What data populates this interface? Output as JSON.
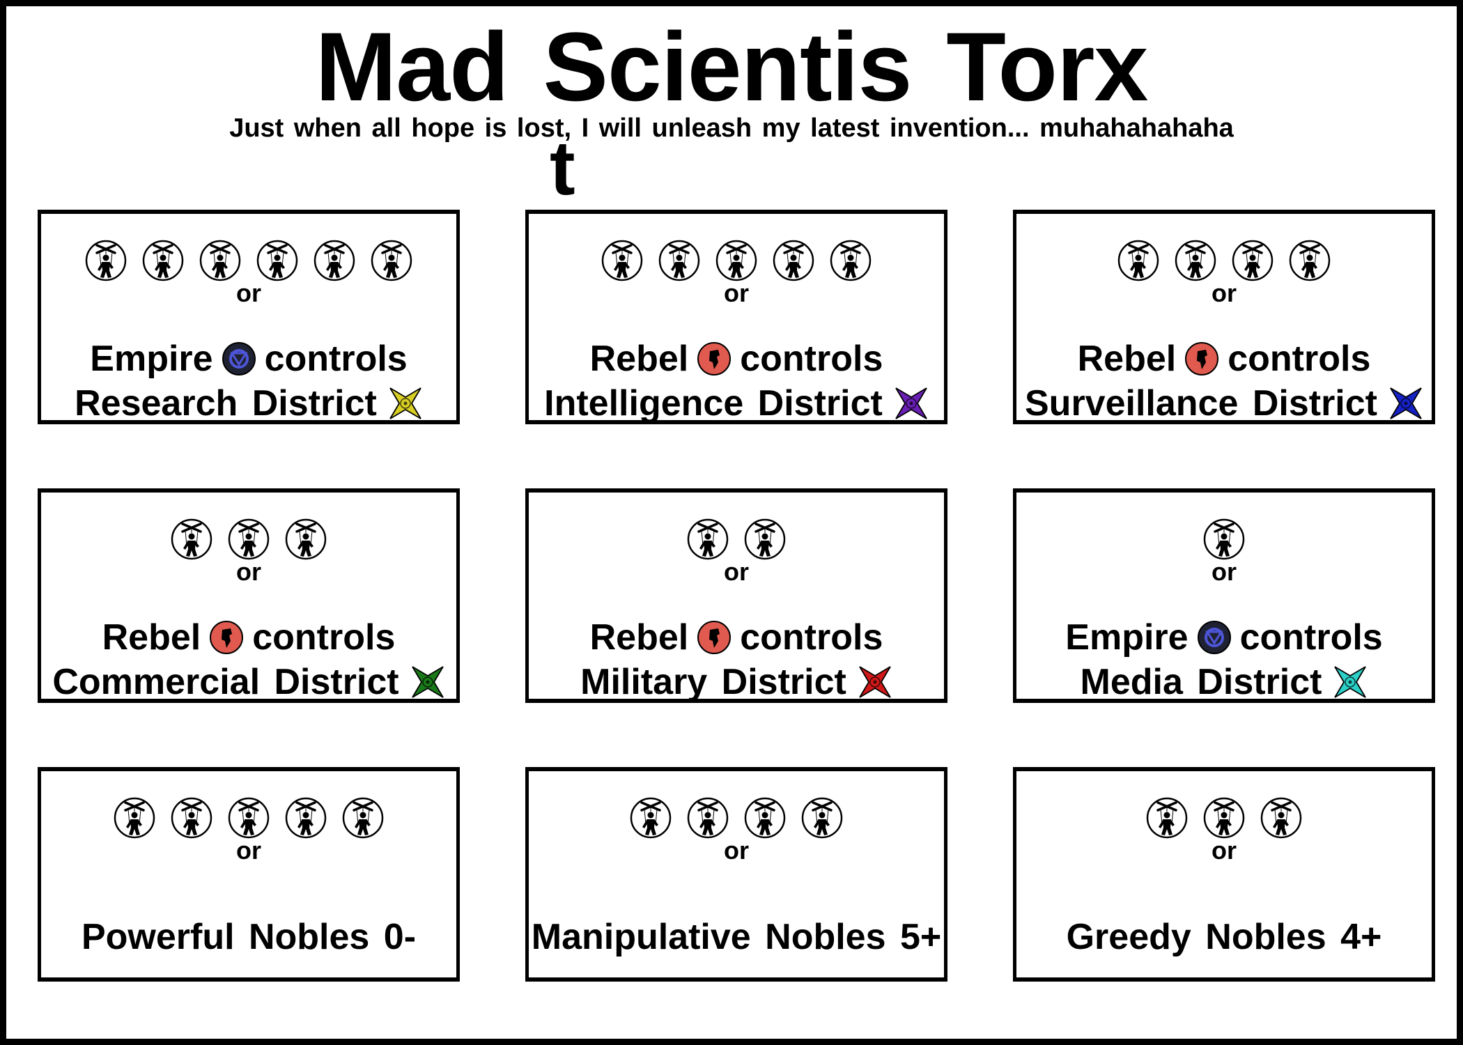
{
  "title": "Mad Scientis Torx",
  "title_overflow": "t",
  "subtitle": "Just when all hope is lost, I will unleash my latest invention... muhahahahaha",
  "or_label": "or",
  "controls_label": "controls",
  "icon_names": {
    "token": "puppet-marionette-icon",
    "empire": "empire-eye-icon",
    "rebel": "rebel-fist-icon",
    "district": "district-star-icon"
  },
  "colors": {
    "empire": "#1f2233",
    "empire_ring": "#4d55d8",
    "rebel": "#e05a4f",
    "research": "#d8cf24",
    "intelligence": "#6a1fb5",
    "surveillance": "#1622c8",
    "commercial": "#1a7a1a",
    "military": "#d01818",
    "media": "#2ad0c7"
  },
  "cards": [
    {
      "tokens": 6,
      "faction": "Empire",
      "faction_kind": "empire",
      "district": "Research District",
      "district_color": "#d8cf24"
    },
    {
      "tokens": 5,
      "faction": "Rebel",
      "faction_kind": "rebel",
      "district": "Intelligence District",
      "district_color": "#6a1fb5"
    },
    {
      "tokens": 4,
      "faction": "Rebel",
      "faction_kind": "rebel",
      "district": "Surveillance District",
      "district_color": "#1622c8"
    },
    {
      "tokens": 3,
      "faction": "Rebel",
      "faction_kind": "rebel",
      "district": "Commercial District",
      "district_color": "#1a7a1a"
    },
    {
      "tokens": 2,
      "faction": "Rebel",
      "faction_kind": "rebel",
      "district": "Military District",
      "district_color": "#d01818"
    },
    {
      "tokens": 1,
      "faction": "Empire",
      "faction_kind": "empire",
      "district": "Media District",
      "district_color": "#2ad0c7"
    },
    {
      "tokens": 5,
      "nobles": "Powerful Nobles 0-"
    },
    {
      "tokens": 4,
      "nobles": "Manipulative Nobles 5+"
    },
    {
      "tokens": 3,
      "nobles": "Greedy Nobles 4+"
    }
  ]
}
